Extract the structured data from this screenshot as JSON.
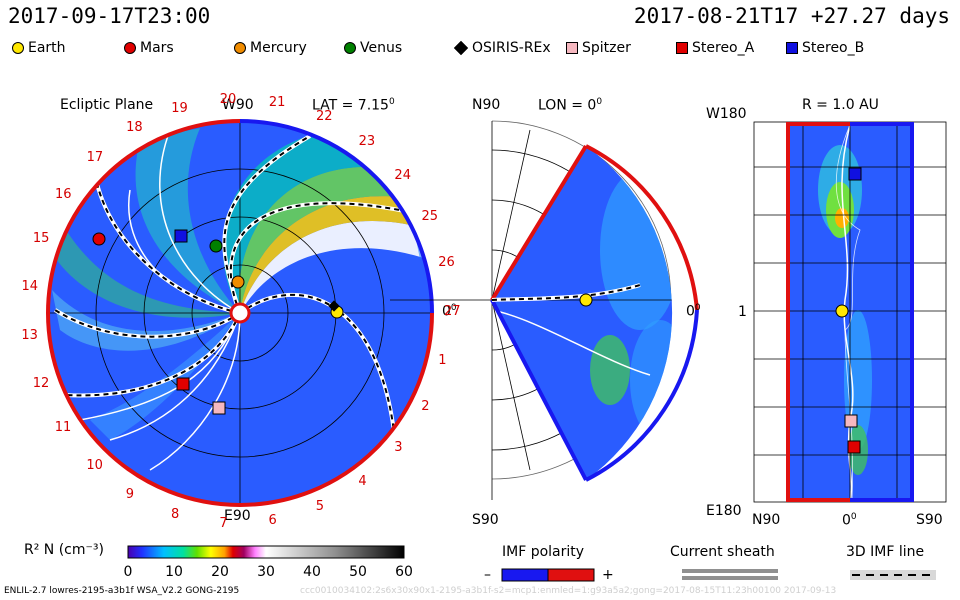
{
  "header": {
    "date_left": "2017-09-17T23:00",
    "date_right": "2017-08-21T17 +27.27 days"
  },
  "legend": [
    {
      "label": "Earth",
      "color": "#ffe800",
      "shape": "circle"
    },
    {
      "label": "Mars",
      "color": "#e00000",
      "shape": "circle"
    },
    {
      "label": "Mercury",
      "color": "#f08c00",
      "shape": "circle"
    },
    {
      "label": "Venus",
      "color": "#008000",
      "shape": "circle"
    },
    {
      "label": "OSIRIS-REx",
      "color": "#000000",
      "shape": "diamond"
    },
    {
      "label": "Spitzer",
      "color": "#f6b8c0",
      "shape": "square"
    },
    {
      "label": "Stereo_A",
      "color": "#e00000",
      "shape": "square"
    },
    {
      "label": "Stereo_B",
      "color": "#1010e0",
      "shape": "square"
    }
  ],
  "panels": {
    "ecliptic": {
      "title": "Ecliptic Plane",
      "top_label": "W90",
      "bottom_label": "E90",
      "right_label": "0",
      "lat": "LAT = 7.15",
      "deg": "0",
      "carrington_days": [
        "1",
        "2",
        "3",
        "4",
        "5",
        "6",
        "7",
        "8",
        "9",
        "10",
        "11",
        "12",
        "13",
        "14",
        "15",
        "16",
        "17",
        "18",
        "19",
        "20",
        "21",
        "22",
        "23",
        "24",
        "25",
        "26",
        "27"
      ]
    },
    "meridional": {
      "top_label": "N90",
      "bottom_label": "S90",
      "lon": "LON = 0",
      "deg": "0",
      "right_label": "0",
      "right_deg": "0"
    },
    "radial": {
      "title": "R = 1.0 AU",
      "top_left": "W180",
      "mid_left": "1",
      "bottom_left": "E180",
      "x_left": "N90",
      "x_mid": "0",
      "x_deg": "0",
      "x_right": "S90"
    }
  },
  "colorbar": {
    "label": "R² N (cm⁻³)",
    "ticks": [
      "0",
      "10",
      "20",
      "30",
      "40",
      "50",
      "60"
    ]
  },
  "keys": {
    "imf_polarity": "IMF polarity",
    "minus": "–",
    "plus": "+",
    "current_sheath": "Current sheath",
    "imf_line": "3D IMF line"
  },
  "footer": {
    "text": "ENLIL-2.7 lowres-2195-a3b1f WSA_V2.2 GONG-2195",
    "faint": "ccc0010034102:2s6x30x90x1-2195-a3b1f-s2=mcp1:enmled=1:g93a5a2;gong=2017-08-15T11:23h00100     2017-09-13"
  },
  "colors": {
    "background": "#2a5cff",
    "boundary_red": "#e01010",
    "boundary_blue": "#1818f0"
  }
}
